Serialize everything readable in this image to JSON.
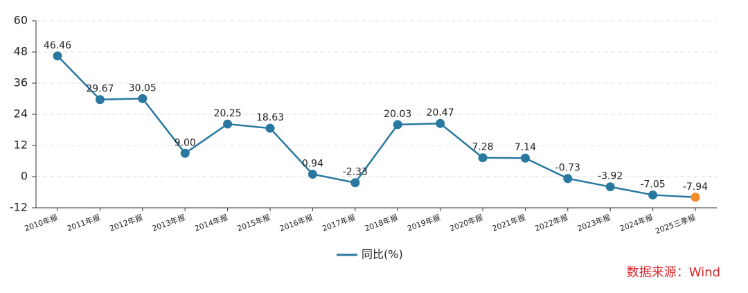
{
  "chart_data": {
    "type": "line",
    "categories": [
      "2010年报",
      "2011年报",
      "2012年报",
      "2013年报",
      "2014年报",
      "2015年报",
      "2016年报",
      "2017年报",
      "2018年报",
      "2019年报",
      "2020年报",
      "2021年报",
      "2022年报",
      "2023年报",
      "2024年报",
      "2025三季报"
    ],
    "series": [
      {
        "name": "同比(%)",
        "color": "#2878a0",
        "values": [
          46.46,
          29.67,
          30.05,
          9,
          20.25,
          18.63,
          0.94,
          -2.33,
          20.03,
          20.47,
          7.28,
          7.14,
          -0.73,
          -3.92,
          -7.05,
          -7.94
        ],
        "value_labels": [
          "46.46",
          "29.67",
          "30.05",
          "9.00",
          "20.25",
          "18.63",
          "0.94",
          "-2.33",
          "20.03",
          "20.47",
          "7.28",
          "7.14",
          "-0.73",
          "-3.92",
          "-7.05",
          "-7.94"
        ],
        "marker_colors": [
          "#2878a0",
          "#2878a0",
          "#2878a0",
          "#2878a0",
          "#2878a0",
          "#2878a0",
          "#2878a0",
          "#2878a0",
          "#2878a0",
          "#2878a0",
          "#2878a0",
          "#2878a0",
          "#2878a0",
          "#2878a0",
          "#2878a0",
          "#f28c28"
        ]
      }
    ],
    "ylim": [
      -12,
      60
    ],
    "yticks": [
      -12,
      0,
      12,
      24,
      36,
      48,
      60
    ],
    "grid": true,
    "legend": "bottom",
    "source": "数据来源：Wind"
  }
}
